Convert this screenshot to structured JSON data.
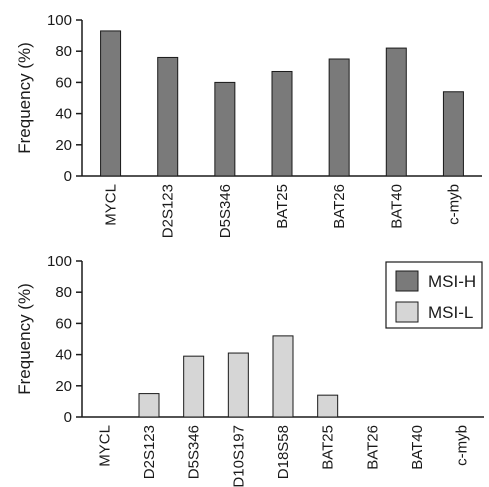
{
  "chart_data": [
    {
      "type": "bar",
      "categories": [
        "MYCL",
        "D2S123",
        "D5S346",
        "BAT25",
        "BAT26",
        "BAT40",
        "c-myb"
      ],
      "series": [
        {
          "name": "MSI-H",
          "values": [
            93,
            76,
            60,
            67,
            75,
            82,
            54
          ],
          "color": "#7a7a7a"
        }
      ],
      "ylabel": "Frequency (%)",
      "ylim": [
        0,
        100
      ],
      "yticks": [
        0,
        20,
        40,
        60,
        80,
        100
      ],
      "grid": false
    },
    {
      "type": "bar",
      "categories": [
        "MYCL",
        "D2S123",
        "D5S346",
        "D10S197",
        "D18S58",
        "BAT25",
        "BAT26",
        "BAT40",
        "c-myb"
      ],
      "series": [
        {
          "name": "MSI-L",
          "values": [
            0,
            15,
            39,
            41,
            52,
            14,
            0,
            0,
            0
          ],
          "color": "#d6d6d6"
        }
      ],
      "ylabel": "Frequency (%)",
      "ylim": [
        0,
        100
      ],
      "yticks": [
        0,
        20,
        40,
        60,
        80,
        100
      ],
      "grid": false,
      "legend": {
        "placement": "top-right",
        "entries": [
          {
            "label": "MSI-H",
            "color": "#7a7a7a"
          },
          {
            "label": "MSI-L",
            "color": "#d6d6d6"
          }
        ]
      }
    }
  ]
}
